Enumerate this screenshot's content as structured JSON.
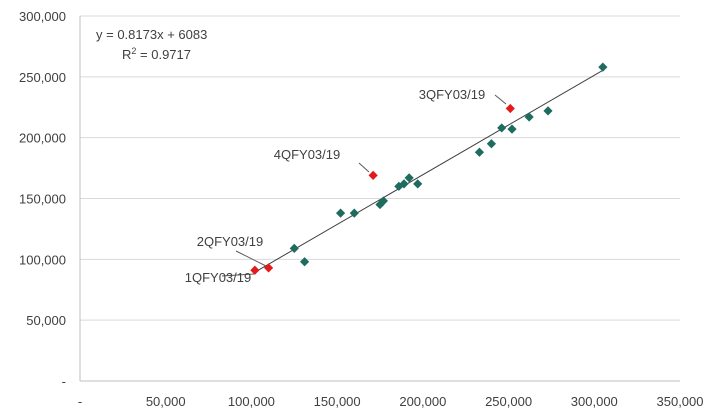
{
  "chart_data": {
    "type": "scatter",
    "xlim": [
      0,
      350000
    ],
    "ylim": [
      0,
      300000
    ],
    "x_ticks": [
      0,
      50000,
      100000,
      150000,
      200000,
      250000,
      300000,
      350000
    ],
    "y_ticks": [
      0,
      50000,
      100000,
      150000,
      200000,
      250000,
      300000
    ],
    "x_tick_labels": [
      "-",
      "50,000",
      "100,000",
      "150,000",
      "200,000",
      "250,000",
      "300,000",
      "350,000"
    ],
    "y_tick_labels": [
      "-",
      "50,000",
      "100,000",
      "150,000",
      "200,000",
      "250,000",
      "300,000"
    ],
    "grid": "horizontal",
    "trendline": {
      "slope": 0.8173,
      "intercept": 6083,
      "equation_text": "y = 0.8173x + 6083",
      "r2_prefix": "R",
      "r2_sup": "2",
      "r2_suffix": " = 0.9717"
    },
    "colors": {
      "base": "#1e6b5f",
      "highlight": "#e31a1c",
      "trend": "#404040",
      "grid": "#d9d9d9"
    },
    "series": [
      {
        "color": "#1e6b5f",
        "points": [
          [
            125000,
            109000
          ],
          [
            131000,
            98000
          ],
          [
            152000,
            138000
          ],
          [
            160000,
            138000
          ],
          [
            175000,
            145000
          ],
          [
            177000,
            148000
          ],
          [
            186000,
            160000
          ],
          [
            189000,
            162000
          ],
          [
            192000,
            167000
          ],
          [
            197000,
            162000
          ],
          [
            233000,
            188000
          ],
          [
            240000,
            195000
          ],
          [
            246000,
            208000
          ],
          [
            252000,
            207000
          ],
          [
            262000,
            217000
          ],
          [
            273000,
            222000
          ],
          [
            305000,
            258000
          ]
        ]
      },
      {
        "color": "#e31a1c",
        "points": [
          [
            102000,
            91000
          ],
          [
            110000,
            93000
          ],
          [
            171000,
            169000
          ],
          [
            251000,
            224000
          ]
        ]
      }
    ],
    "annotations": [
      {
        "text": "1QFY03/19",
        "x": 102000,
        "y": 91000
      },
      {
        "text": "2QFY03/19",
        "x": 110000,
        "y": 93000
      },
      {
        "text": "4QFY03/19",
        "x": 171000,
        "y": 169000
      },
      {
        "text": "3QFY03/19",
        "x": 251000,
        "y": 224000
      }
    ]
  }
}
